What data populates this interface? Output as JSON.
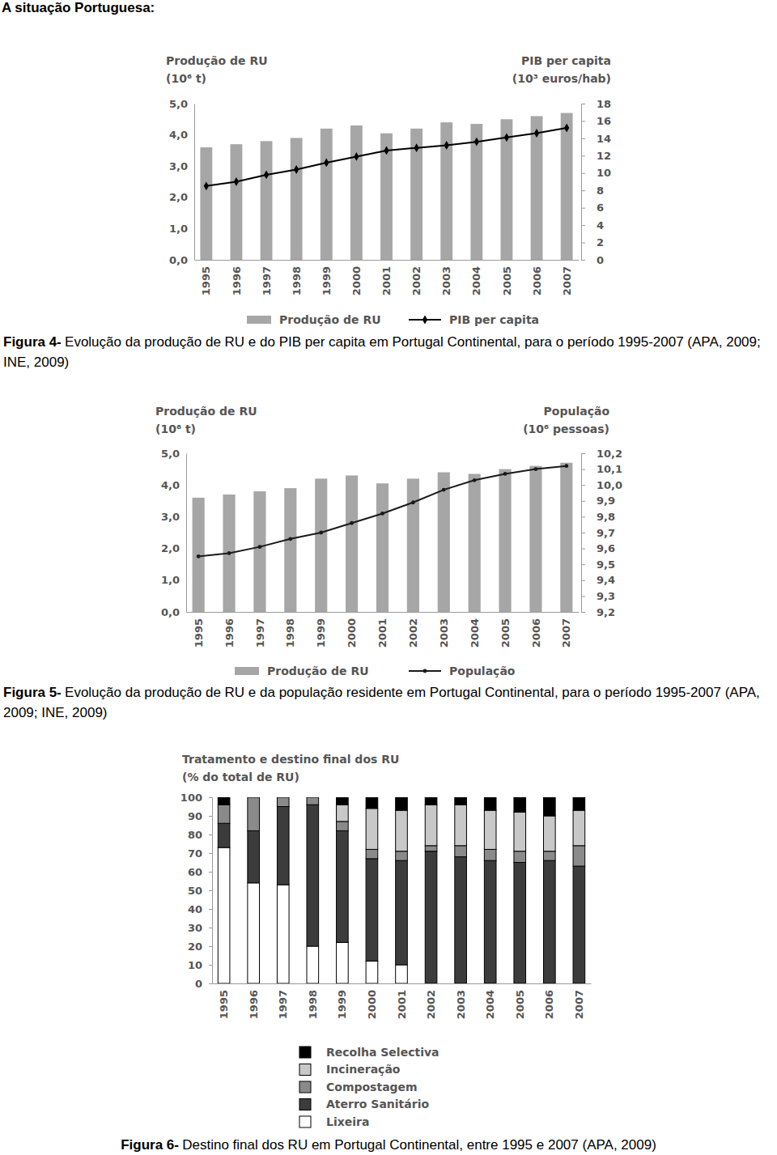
{
  "heading": "A situação Portuguesa:",
  "chart_data": [
    {
      "type": "bar",
      "ylabel": [
        "Produção de RU",
        "(10⁶ t)"
      ],
      "y2label": [
        "PIB per capita",
        "(10³ euros/hab)"
      ],
      "categories": [
        "1995",
        "1996",
        "1997",
        "1998",
        "1999",
        "2000",
        "2001",
        "2002",
        "2003",
        "2004",
        "2005",
        "2006",
        "2007"
      ],
      "series": [
        {
          "name": "Produção de RU",
          "type": "bar",
          "color": "#a6a6a6",
          "values": [
            3.6,
            3.7,
            3.8,
            3.9,
            4.2,
            4.3,
            4.05,
            4.2,
            4.4,
            4.35,
            4.5,
            4.6,
            4.7
          ]
        },
        {
          "name": "PIB per capita",
          "type": "line",
          "axis": "y2",
          "color": "#000000",
          "marker": "diamond",
          "values": [
            8.5,
            9.0,
            9.8,
            10.4,
            11.2,
            11.9,
            12.6,
            12.9,
            13.2,
            13.6,
            14.1,
            14.6,
            15.2
          ]
        }
      ],
      "ylim": [
        0,
        5
      ],
      "yticks": [
        {
          "value": 0,
          "label": "0,0"
        },
        {
          "value": 1,
          "label": "1,0"
        },
        {
          "value": 2,
          "label": "2,0"
        },
        {
          "value": 3,
          "label": "3,0"
        },
        {
          "value": 4,
          "label": "4,0"
        },
        {
          "value": 5,
          "label": "5,0"
        }
      ],
      "y2lim": [
        0,
        18
      ],
      "y2ticks": [
        0,
        2,
        4,
        6,
        8,
        10,
        12,
        14,
        16,
        18
      ],
      "legend": "bottom",
      "caption_label": "Figura 4-",
      "caption": "Evolução da produção de RU e do PIB per capita em Portugal  Continental, para o período 1995-2007 (APA, 2009; INE, 2009)"
    },
    {
      "type": "bar",
      "ylabel": [
        "Produção de RU",
        "(10⁶ t)"
      ],
      "y2label": [
        "População",
        "(10⁶ pessoas)"
      ],
      "categories": [
        "1995",
        "1996",
        "1997",
        "1998",
        "1999",
        "2000",
        "2001",
        "2002",
        "2003",
        "2004",
        "2005",
        "2006",
        "2007"
      ],
      "series": [
        {
          "name": "Produção de RU",
          "type": "bar",
          "color": "#a6a6a6",
          "values": [
            3.6,
            3.7,
            3.8,
            3.9,
            4.2,
            4.3,
            4.05,
            4.2,
            4.4,
            4.35,
            4.5,
            4.6,
            4.7
          ]
        },
        {
          "name": "População",
          "type": "line",
          "axis": "y2",
          "color": "#1a1a1a",
          "marker": "circle",
          "values": [
            9.55,
            9.57,
            9.61,
            9.66,
            9.7,
            9.76,
            9.82,
            9.89,
            9.97,
            10.03,
            10.07,
            10.1,
            10.12
          ]
        }
      ],
      "ylim": [
        0,
        5
      ],
      "yticks": [
        {
          "value": 0,
          "label": "0,0"
        },
        {
          "value": 1,
          "label": "1,0"
        },
        {
          "value": 2,
          "label": "2,0"
        },
        {
          "value": 3,
          "label": "3,0"
        },
        {
          "value": 4,
          "label": "4,0"
        },
        {
          "value": 5,
          "label": "5,0"
        }
      ],
      "y2lim": [
        9.2,
        10.2
      ],
      "y2ticks": [
        {
          "value": 9.2,
          "label": "9,2"
        },
        {
          "value": 9.3,
          "label": "9,3"
        },
        {
          "value": 9.4,
          "label": "9,4"
        },
        {
          "value": 9.5,
          "label": "9,5"
        },
        {
          "value": 9.6,
          "label": "9,6"
        },
        {
          "value": 9.7,
          "label": "9,7"
        },
        {
          "value": 9.8,
          "label": "9,8"
        },
        {
          "value": 9.9,
          "label": "9,9"
        },
        {
          "value": 10.0,
          "label": "10,0"
        },
        {
          "value": 10.1,
          "label": "10,1"
        },
        {
          "value": 10.2,
          "label": "10,2"
        }
      ],
      "legend": "bottom",
      "caption_label": "Figura 5-",
      "caption": "Evolução da produção de RU e da população residente em Portugal Continental, para o período 1995-2007 (APA, 2009; INE, 2009)"
    },
    {
      "type": "bar",
      "stacked": true,
      "ylabel": [
        "Tratamento e destino final dos RU",
        "(% do total de RU)"
      ],
      "categories": [
        "1995",
        "1996",
        "1997",
        "1998",
        "1999",
        "2000",
        "2001",
        "2002",
        "2003",
        "2004",
        "2005",
        "2006",
        "2007"
      ],
      "series": [
        {
          "name": "Recolha Selectiva",
          "color": "#000000",
          "values": [
            4,
            0,
            0,
            0,
            4,
            6,
            7,
            4,
            4,
            7,
            8,
            10,
            7
          ]
        },
        {
          "name": "Incineração",
          "color": "#c8c8c8",
          "values": [
            0,
            0,
            0,
            0,
            9,
            22,
            22,
            22,
            22,
            21,
            21,
            19,
            19
          ]
        },
        {
          "name": "Compostagem",
          "color": "#8a8a8a",
          "values": [
            10,
            18,
            5,
            4,
            5,
            5,
            5,
            3,
            6,
            6,
            6,
            5,
            11
          ]
        },
        {
          "name": "Aterro Sanitário",
          "color": "#3c3c3c",
          "values": [
            13,
            28,
            42,
            76,
            60,
            55,
            56,
            71,
            68,
            66,
            65,
            66,
            63
          ]
        },
        {
          "name": "Lixeira",
          "color": "#ffffff",
          "values": [
            73,
            54,
            53,
            20,
            22,
            12,
            10,
            0,
            0,
            0,
            0,
            0,
            0
          ]
        }
      ],
      "ylim": [
        0,
        100
      ],
      "yticks": [
        0,
        10,
        20,
        30,
        40,
        50,
        60,
        70,
        80,
        90,
        100
      ],
      "legend": "bottom",
      "caption_label": "Figura 6-",
      "caption": "Destino final dos RU em Portugal Continental, entre 1995 e 2007 (APA, 2009)"
    }
  ]
}
